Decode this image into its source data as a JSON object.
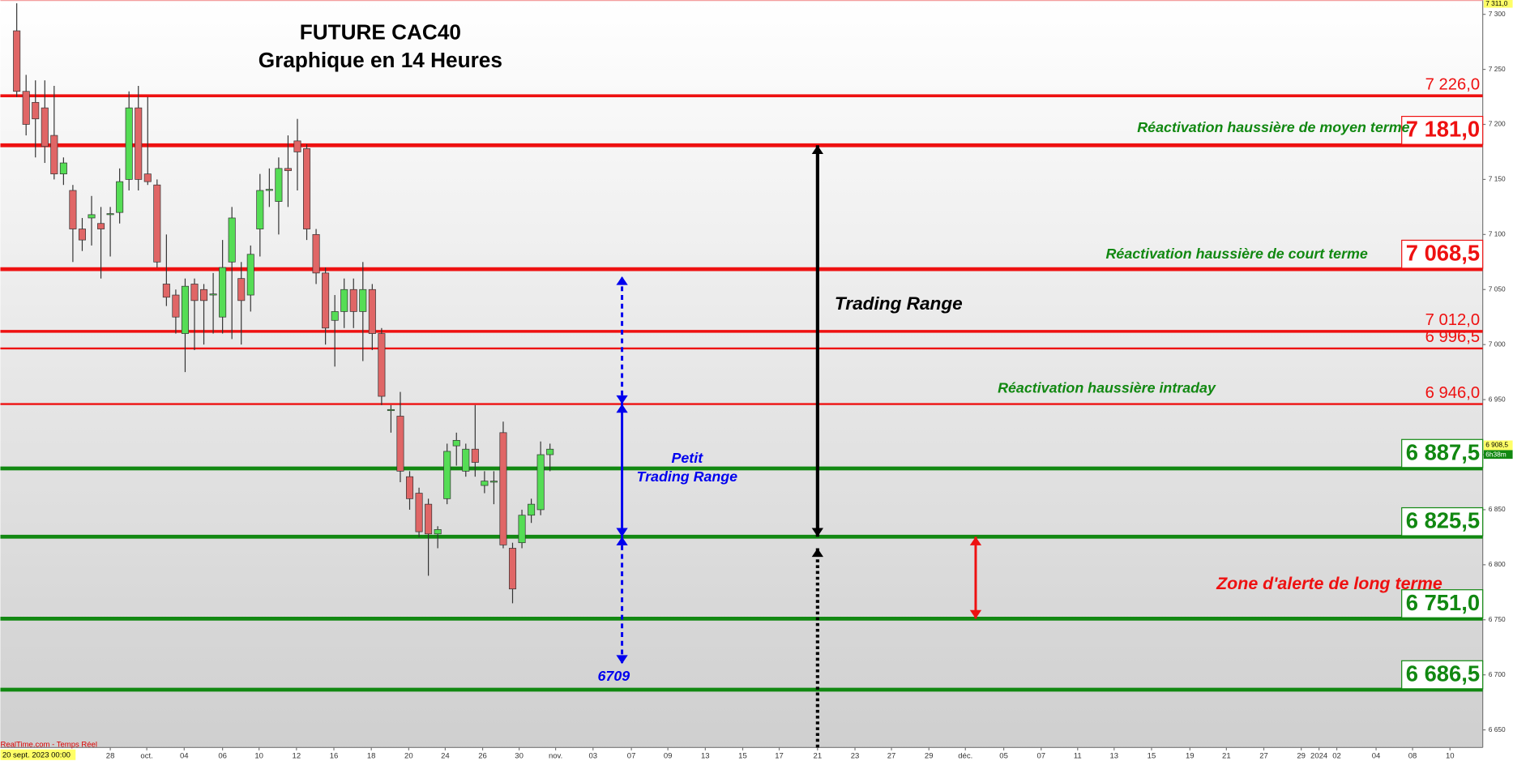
{
  "chart_data": {
    "type": "candlestick",
    "title": "FUTURE CAC40",
    "subtitle": "Graphique en 14 Heures",
    "source": "RealTime.com - Temps Réel",
    "start_date": "20 sept. 2023 00:00",
    "x": [
      0,
      1,
      2,
      3,
      4,
      5,
      6,
      7,
      8,
      9,
      10,
      11,
      12,
      13,
      14,
      15,
      16,
      17,
      18,
      19,
      20,
      21,
      22,
      23,
      24,
      25,
      26,
      27,
      28,
      29,
      30,
      31,
      32,
      33,
      34,
      35,
      36,
      37,
      38,
      39,
      40,
      41,
      42,
      43,
      44,
      45,
      46,
      47,
      48,
      49,
      50,
      51,
      52,
      53,
      54,
      55,
      56,
      57
    ],
    "open": [
      7285,
      7230,
      7220,
      7215,
      7190,
      7155,
      7140,
      7105,
      7115,
      7110,
      7118,
      7120,
      7150,
      7215,
      7155,
      7145,
      7055,
      7045,
      7010,
      7055,
      7050,
      7045,
      7025,
      7075,
      7060,
      7045,
      7105,
      7140,
      7130,
      7160,
      7185,
      7178,
      7100,
      7065,
      7022,
      7030,
      7050,
      7030,
      7050,
      7010,
      6940,
      6935,
      6880,
      6865,
      6855,
      6828,
      6860,
      6908,
      6885,
      6905,
      6872,
      6875,
      6920,
      6815,
      6820,
      6845,
      6850,
      6900
    ],
    "high": [
      7310,
      7245,
      7240,
      7240,
      7235,
      7170,
      7145,
      7115,
      7135,
      7125,
      7125,
      7160,
      7230,
      7235,
      7225,
      7150,
      7100,
      7050,
      7060,
      7060,
      7055,
      7065,
      7095,
      7125,
      7075,
      7090,
      7155,
      7160,
      7170,
      7190,
      7205,
      7182,
      7105,
      7070,
      7045,
      7060,
      7060,
      7075,
      7055,
      7015,
      6945,
      6957,
      6885,
      6870,
      6860,
      6835,
      6910,
      6920,
      6910,
      6945,
      6885,
      6885,
      6930,
      6820,
      6850,
      6860,
      6912,
      6910
    ],
    "low": [
      7225,
      7190,
      7170,
      7165,
      7150,
      7145,
      7075,
      7085,
      7090,
      7060,
      7080,
      7110,
      7140,
      7140,
      7145,
      7070,
      7035,
      7010,
      6975,
      6995,
      7000,
      7010,
      7010,
      7005,
      7000,
      7030,
      7080,
      7125,
      7100,
      7125,
      7140,
      7095,
      7055,
      7000,
      6980,
      7015,
      7015,
      6985,
      6995,
      6945,
      6920,
      6875,
      6850,
      6825,
      6790,
      6815,
      6855,
      6890,
      6880,
      6880,
      6865,
      6855,
      6815,
      6765,
      6815,
      6838,
      6845,
      6885
    ],
    "close": [
      7230,
      7200,
      7205,
      7180,
      7155,
      7165,
      7105,
      7095,
      7118,
      7105,
      7119,
      7148,
      7215,
      7150,
      7148,
      7075,
      7043,
      7025,
      7053,
      7040,
      7040,
      7046,
      7070,
      7115,
      7040,
      7082,
      7140,
      7141,
      7160,
      7158,
      7175,
      7105,
      7065,
      7015,
      7030,
      7050,
      7030,
      7050,
      7010,
      6953,
      6941,
      6885,
      6860,
      6830,
      6828,
      6832,
      6903,
      6913,
      6905,
      6893,
      6876,
      6876,
      6818,
      6778,
      6845,
      6855,
      6900,
      6905
    ],
    "up_color": "#55dd55",
    "down_color": "#e06666",
    "xlim": [
      -1.75,
      156.7
    ],
    "ylim": [
      6634,
      7313
    ],
    "xticks": [
      {
        "value": 10.0,
        "label": "28"
      },
      {
        "value": 13.9,
        "label": "oct."
      },
      {
        "value": 17.9,
        "label": "04"
      },
      {
        "value": 22.0,
        "label": "06"
      },
      {
        "value": 25.9,
        "label": "10"
      },
      {
        "value": 29.9,
        "label": "12"
      },
      {
        "value": 33.9,
        "label": "16"
      },
      {
        "value": 37.9,
        "label": "18"
      },
      {
        "value": 41.9,
        "label": "20"
      },
      {
        "value": 45.8,
        "label": "24"
      },
      {
        "value": 49.8,
        "label": "26"
      },
      {
        "value": 53.7,
        "label": "30"
      },
      {
        "value": 57.6,
        "label": "nov."
      },
      {
        "value": 61.6,
        "label": "03"
      },
      {
        "value": 65.7,
        "label": "07"
      },
      {
        "value": 69.6,
        "label": "09"
      },
      {
        "value": 73.6,
        "label": "13"
      },
      {
        "value": 77.6,
        "label": "15"
      },
      {
        "value": 81.5,
        "label": "17"
      },
      {
        "value": 85.6,
        "label": "21"
      },
      {
        "value": 89.6,
        "label": "23"
      },
      {
        "value": 93.5,
        "label": "27"
      },
      {
        "value": 97.5,
        "label": "29"
      },
      {
        "value": 101.4,
        "label": "déc."
      },
      {
        "value": 105.5,
        "label": "05"
      },
      {
        "value": 109.5,
        "label": "07"
      },
      {
        "value": 113.4,
        "label": "11"
      },
      {
        "value": 117.3,
        "label": "13"
      },
      {
        "value": 121.3,
        "label": "15"
      },
      {
        "value": 125.4,
        "label": "19"
      },
      {
        "value": 129.3,
        "label": "21"
      },
      {
        "value": 133.3,
        "label": "27"
      },
      {
        "value": 137.3,
        "label": "29"
      },
      {
        "value": 139.2,
        "label": "2024"
      },
      {
        "value": 141.1,
        "label": "02"
      },
      {
        "value": 145.3,
        "label": "04"
      },
      {
        "value": 149.2,
        "label": "08"
      },
      {
        "value": 153.2,
        "label": "10"
      }
    ],
    "yticks": [
      {
        "value": 6650,
        "label": "6 650"
      },
      {
        "value": 6700,
        "label": "6 700"
      },
      {
        "value": 6750,
        "label": "6 750"
      },
      {
        "value": 6800,
        "label": "6 800"
      },
      {
        "value": 6850,
        "label": "6 850"
      },
      {
        "value": 6900,
        "label": "6 900"
      },
      {
        "value": 6950,
        "label": "6 950"
      },
      {
        "value": 7000,
        "label": "7 000"
      },
      {
        "value": 7050,
        "label": "7 050"
      },
      {
        "value": 7100,
        "label": "7 100"
      },
      {
        "value": 7150,
        "label": "7 150"
      },
      {
        "value": 7200,
        "label": "7 200"
      },
      {
        "value": 7250,
        "label": "7 250"
      },
      {
        "value": 7300,
        "label": "7 300"
      }
    ],
    "top_price": {
      "value": 7311,
      "label": "7 311,0"
    },
    "last_price": {
      "value": 6908.5,
      "label": "6 908,5"
    },
    "countdown": "6h38m",
    "levels": [
      {
        "value": 7226,
        "label": "7 226,0",
        "color": "#ee1111",
        "width": 3,
        "boxed": false
      },
      {
        "value": 7181,
        "label": "7 181,0",
        "color": "#ee1111",
        "width": 4,
        "boxed": true
      },
      {
        "value": 7068.5,
        "label": "7 068,5",
        "color": "#ee1111",
        "width": 4,
        "boxed": true
      },
      {
        "value": 7012,
        "label": "7 012,0",
        "color": "#ee1111",
        "width": 3,
        "boxed": false
      },
      {
        "value": 6996.5,
        "label": "6 996,5",
        "color": "#ee1111",
        "width": 2,
        "boxed": false
      },
      {
        "value": 6946,
        "label": "6 946,0",
        "color": "#ee1111",
        "width": 2,
        "boxed": false
      },
      {
        "value": 6887.5,
        "label": "6 887,5",
        "color": "#118811",
        "width": 4,
        "boxed": true
      },
      {
        "value": 6825.5,
        "label": "6 825,5",
        "color": "#118811",
        "width": 4,
        "boxed": true
      },
      {
        "value": 6751,
        "label": "6 751,0",
        "color": "#118811",
        "width": 4,
        "boxed": true
      },
      {
        "value": 6686.5,
        "label": "6 686,5",
        "color": "#118811",
        "width": 4,
        "boxed": true
      }
    ],
    "arrows": [
      {
        "x": 64.7,
        "from": 6946,
        "to": 7062,
        "color": "#0000ee",
        "style": "dashed",
        "heads": "both"
      },
      {
        "x": 64.7,
        "from": 6825.5,
        "to": 6946,
        "color": "#0000ee",
        "style": "solid",
        "heads": "both"
      },
      {
        "x": 64.7,
        "from": 6825.5,
        "to": 6710,
        "color": "#0000ee",
        "style": "dashed",
        "heads": "both"
      },
      {
        "x": 85.6,
        "from": 6825.5,
        "to": 7181,
        "color": "#000000",
        "style": "solid",
        "heads": "both"
      },
      {
        "x": 85.6,
        "from": 6634,
        "to": 6815,
        "color": "#000000",
        "style": "dotted",
        "heads": "end"
      },
      {
        "x": 102.5,
        "from": 6751,
        "to": 6825.5,
        "color": "#ee1111",
        "style": "solid",
        "heads": "both"
      }
    ],
    "annotations": [
      {
        "text": "Réactivation haussière de moyen terme",
        "color": "#118811"
      },
      {
        "text": "Réactivation haussière de court terme",
        "color": "#118811"
      },
      {
        "text": "Trading Range",
        "color": "#000000"
      },
      {
        "text": "Réactivation haussière intraday",
        "color": "#118811"
      },
      {
        "text": "Petit",
        "color": "#0000ee"
      },
      {
        "text": "Trading Range",
        "color": "#0000ee"
      },
      {
        "text": "Zone d'alerte de long terme",
        "color": "#ee1111"
      },
      {
        "text": "6709",
        "color": "#0000ee"
      }
    ]
  }
}
